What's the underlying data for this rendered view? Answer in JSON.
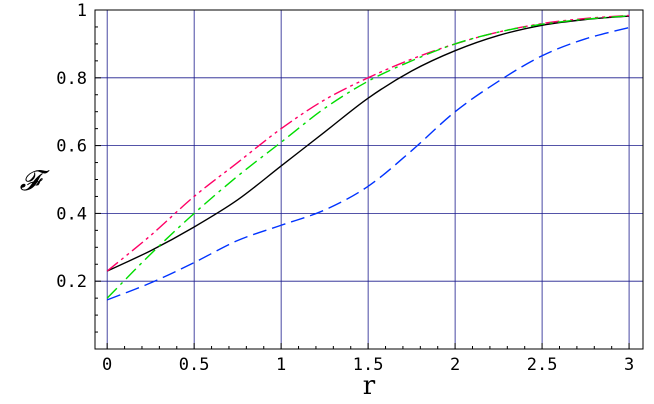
{
  "chart_data": {
    "type": "line",
    "xlabel": "r",
    "ylabel": "𝓕",
    "xlim": [
      -0.07,
      3.08
    ],
    "ylim": [
      0.0,
      1.0
    ],
    "xticks": [
      0,
      0.5,
      1,
      1.5,
      2,
      2.5,
      3
    ],
    "xtick_labels": [
      "0",
      "0.5",
      "1",
      "1.5",
      "2",
      "2.5",
      "3"
    ],
    "yticks": [
      0.2,
      0.4,
      0.6,
      0.8,
      1
    ],
    "ytick_labels": [
      "0.2",
      "0.4",
      "0.6",
      "0.8",
      "1"
    ],
    "grid": true,
    "grid_color": "#1a1a8c",
    "series": [
      {
        "color": "#000000",
        "style": "solid",
        "x": [
          0,
          0.25,
          0.5,
          0.75,
          1.0,
          1.25,
          1.5,
          1.75,
          2.0,
          2.25,
          2.5,
          2.75,
          3.0
        ],
        "y": [
          0.23,
          0.29,
          0.36,
          0.44,
          0.54,
          0.64,
          0.74,
          0.82,
          0.88,
          0.925,
          0.955,
          0.972,
          0.982
        ]
      },
      {
        "color": "#ff0066",
        "style": "dash-dot-dot",
        "x": [
          0,
          0.25,
          0.5,
          0.75,
          1.0,
          1.25,
          1.5,
          1.75,
          2.0,
          2.25,
          2.5,
          2.75,
          3.0
        ],
        "y": [
          0.23,
          0.335,
          0.45,
          0.55,
          0.65,
          0.735,
          0.8,
          0.855,
          0.9,
          0.935,
          0.96,
          0.975,
          0.984
        ]
      },
      {
        "color": "#00dd00",
        "style": "dash-dot",
        "x": [
          0,
          0.25,
          0.5,
          0.75,
          1.0,
          1.25,
          1.5,
          1.75,
          2.0,
          2.25,
          2.5,
          2.75,
          3.0
        ],
        "y": [
          0.15,
          0.28,
          0.4,
          0.51,
          0.61,
          0.71,
          0.79,
          0.85,
          0.9,
          0.935,
          0.958,
          0.973,
          0.983
        ]
      },
      {
        "color": "#0033ff",
        "style": "dashed",
        "x": [
          0,
          0.25,
          0.5,
          0.75,
          1.0,
          1.25,
          1.5,
          1.75,
          2.0,
          2.25,
          2.5,
          2.75,
          3.0
        ],
        "y": [
          0.145,
          0.195,
          0.255,
          0.32,
          0.365,
          0.41,
          0.48,
          0.585,
          0.7,
          0.79,
          0.865,
          0.915,
          0.948
        ]
      }
    ]
  }
}
